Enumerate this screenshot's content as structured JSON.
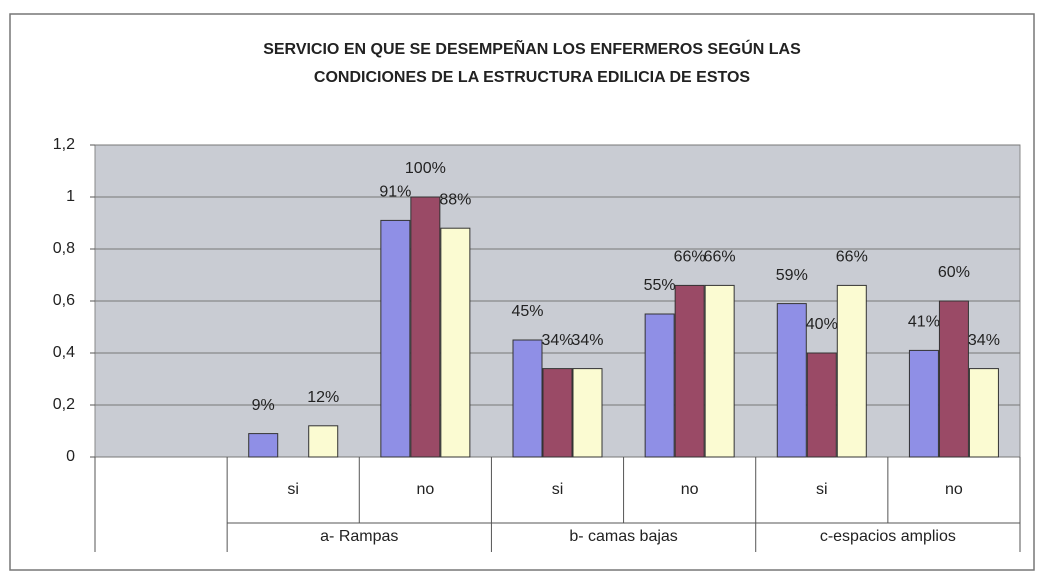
{
  "chart_data": {
    "type": "bar",
    "title": [
      "SERVICIO EN QUE SE DESEMPEÑAN LOS ENFERMEROS SEGÚN LAS",
      "CONDICIONES DE LA ESTRUCTURA EDILICIA DE ESTOS"
    ],
    "categories": [
      null,
      "si",
      "no",
      "si",
      "no",
      "si",
      "no"
    ],
    "groups": [
      "a- Rampas",
      "b- camas bajas",
      "c-espacios amplios"
    ],
    "series": [
      {
        "color": "#8f8fe6",
        "values": [
          null,
          0.09,
          0.91,
          0.45,
          0.55,
          0.59,
          0.41
        ],
        "value_labels": [
          null,
          "9%",
          "91%",
          "45%",
          "55%",
          "59%",
          "41%"
        ]
      },
      {
        "color": "#9a4a66",
        "values": [
          null,
          null,
          1.0,
          0.34,
          0.66,
          0.4,
          0.6
        ],
        "value_labels": [
          null,
          null,
          "100%",
          "34%",
          "66%",
          "40%",
          "60%"
        ]
      },
      {
        "color": "#fbfbd2",
        "values": [
          null,
          0.12,
          0.88,
          0.34,
          0.66,
          0.66,
          0.34
        ],
        "value_labels": [
          null,
          "12%",
          "88%",
          "34%",
          "66%",
          "66%",
          "34%"
        ]
      }
    ],
    "ylim": [
      0,
      1.2
    ],
    "yticks": [
      0,
      {
        "value": 0.2,
        "label": "0,2"
      },
      {
        "value": 0.4,
        "label": "0,4"
      },
      {
        "value": 0.6,
        "label": "0,6"
      },
      {
        "value": 0.8,
        "label": "0,8"
      },
      1,
      {
        "value": 1.2,
        "label": "1,2"
      }
    ],
    "grid": true
  }
}
